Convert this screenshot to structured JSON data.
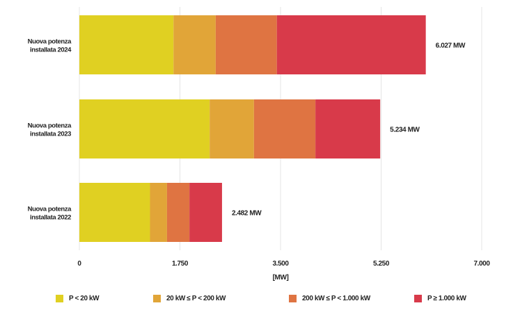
{
  "chart_data": {
    "type": "bar",
    "orientation": "horizontal",
    "stacked": true,
    "categories": [
      "Nuova potenza installata 2024",
      "Nuova potenza installata 2023",
      "Nuova potenza installata 2022"
    ],
    "category_lines": [
      [
        "Nuova potenza",
        "installata 2024"
      ],
      [
        "Nuova potenza",
        "installata 2023"
      ],
      [
        "Nuova potenza",
        "installata 2022"
      ]
    ],
    "series": [
      {
        "name": "P < 20 kW",
        "color": "#e0d022",
        "values": [
          1638,
          2267,
          1229
        ]
      },
      {
        "name": "20 kW ≤ P < 200 kW",
        "color": "#e1a538",
        "values": [
          734,
          771,
          296
        ]
      },
      {
        "name": "200 kW ≤ P < 1.000 kW",
        "color": "#df7442",
        "values": [
          1064,
          1069,
          390
        ]
      },
      {
        "name": "P ≥ 1.000 kW",
        "color": "#d83a4a",
        "values": [
          2591,
          1127,
          567
        ]
      }
    ],
    "totals": [
      "6.027 MW",
      "5.234 MW",
      "2.482 MW"
    ],
    "xlim": [
      0,
      7000
    ],
    "xticks": [
      0,
      1750,
      3500,
      5250,
      7000
    ],
    "xtick_labels": [
      "0",
      "1.750",
      "3.500",
      "5.250",
      "7.000"
    ],
    "xlabel": "[MW]",
    "grid": true,
    "legend": "bottom"
  }
}
